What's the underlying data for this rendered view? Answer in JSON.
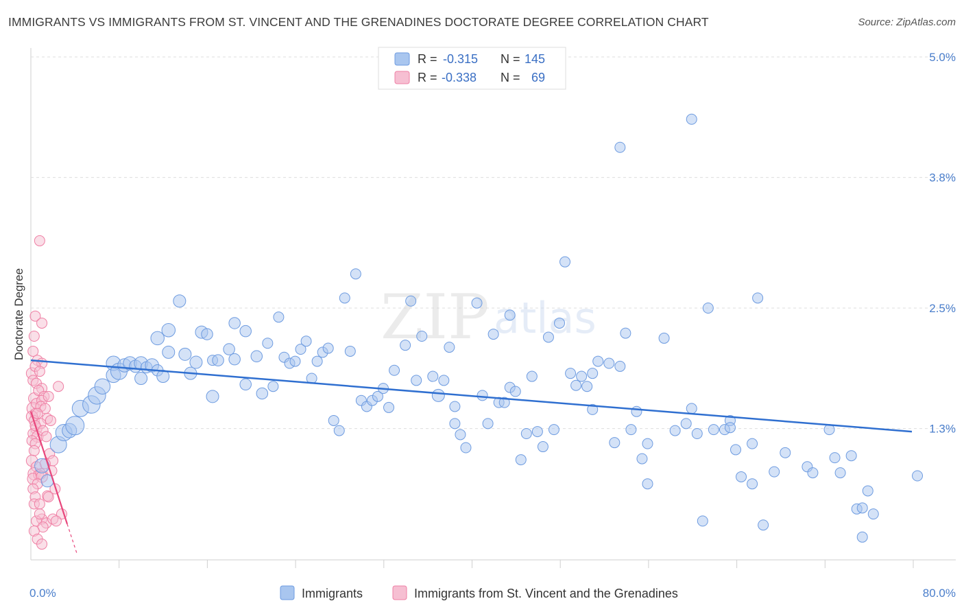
{
  "title": "IMMIGRANTS VS IMMIGRANTS FROM ST. VINCENT AND THE GRENADINES DOCTORATE DEGREE CORRELATION CHART",
  "source": "Source: ZipAtlas.com",
  "watermark": {
    "zip": "ZIP",
    "atlas": "atlas"
  },
  "colors": {
    "blue_fill": "#a9c6ef",
    "blue_stroke": "#6d9be0",
    "blue_line": "#2f6fd0",
    "pink_fill": "#f6bfd2",
    "pink_stroke": "#ef7fa4",
    "pink_line": "#e8467c",
    "tick_text": "#4a7ecb",
    "grid": "#dddddd"
  },
  "legend_top": {
    "rows": [
      {
        "r_label": "R = ",
        "r_value": "-0.315",
        "n_label": "N = ",
        "n_value": "145"
      },
      {
        "r_label": "R = ",
        "r_value": "-0.338",
        "n_label": "N = ",
        "n_value": "69"
      }
    ]
  },
  "chart_data": {
    "type": "scatter",
    "title": "IMMIGRANTS VS IMMIGRANTS FROM ST. VINCENT AND THE GRENADINES DOCTORATE DEGREE CORRELATION CHART",
    "xlabel": "",
    "ylabel": "Doctorate Degree",
    "xlim": [
      0,
      80
    ],
    "ylim": [
      0,
      5.0
    ],
    "x_tick_labels": [
      "0.0%",
      "80.0%"
    ],
    "y_ticks": [
      1.3,
      2.5,
      3.8,
      5.0
    ],
    "y_tick_labels": [
      "1.3%",
      "2.5%",
      "3.8%",
      "5.0%"
    ],
    "grid": true,
    "legend_bottom": [
      "Immigrants",
      "Immigrants from St. Vincent and the Grenadines"
    ],
    "series": [
      {
        "name": "Immigrants",
        "r": -0.315,
        "n": 145,
        "trend": {
          "x0": 0,
          "y0": 1.98,
          "x1": 80,
          "y1": 1.27
        },
        "points": [
          [
            1.0,
            0.93,
            14
          ],
          [
            1.5,
            0.78,
            12
          ],
          [
            2.5,
            1.14,
            16
          ],
          [
            3.0,
            1.26,
            16
          ],
          [
            3.5,
            1.28,
            14
          ],
          [
            4.0,
            1.33,
            18
          ],
          [
            4.5,
            1.5,
            16
          ],
          [
            5.5,
            1.54,
            17
          ],
          [
            6.0,
            1.63,
            17
          ],
          [
            6.5,
            1.72,
            15
          ],
          [
            7.5,
            1.83,
            14
          ],
          [
            7.5,
            1.95,
            14
          ],
          [
            8.0,
            1.87,
            16
          ],
          [
            8.5,
            1.93,
            13
          ],
          [
            9.0,
            1.95,
            13
          ],
          [
            9.5,
            1.92,
            12
          ],
          [
            10.0,
            1.95,
            13
          ],
          [
            10.0,
            1.8,
            12
          ],
          [
            10.5,
            1.91,
            11
          ],
          [
            11.0,
            1.93,
            13
          ],
          [
            11.5,
            1.88,
            11
          ],
          [
            12.0,
            1.82,
            12
          ],
          [
            11.5,
            2.2,
            13
          ],
          [
            12.5,
            2.28,
            13
          ],
          [
            12.5,
            2.06,
            12
          ],
          [
            14.0,
            2.04,
            12
          ],
          [
            13.5,
            2.57,
            12
          ],
          [
            14.5,
            1.85,
            12
          ],
          [
            15.0,
            1.96,
            12
          ],
          [
            15.5,
            2.26,
            12
          ],
          [
            16.0,
            2.24,
            11
          ],
          [
            16.5,
            1.98,
            10
          ],
          [
            17.0,
            1.98,
            11
          ],
          [
            16.5,
            1.62,
            12
          ],
          [
            18.0,
            2.09,
            11
          ],
          [
            18.5,
            1.99,
            11
          ],
          [
            18.5,
            2.35,
            11
          ],
          [
            19.5,
            2.27,
            11
          ],
          [
            19.5,
            1.74,
            11
          ],
          [
            20.5,
            2.02,
            11
          ],
          [
            21.0,
            1.65,
            11
          ],
          [
            21.5,
            2.15,
            10
          ],
          [
            22.0,
            1.72,
            10
          ],
          [
            22.5,
            2.41,
            10
          ],
          [
            23.0,
            2.01,
            10
          ],
          [
            23.5,
            1.95,
            10
          ],
          [
            24.0,
            1.97,
            10
          ],
          [
            24.5,
            2.09,
            10
          ],
          [
            25.0,
            2.17,
            10
          ],
          [
            25.5,
            1.8,
            10
          ],
          [
            26.0,
            1.97,
            10
          ],
          [
            26.5,
            2.06,
            10
          ],
          [
            27.0,
            2.1,
            10
          ],
          [
            27.5,
            1.38,
            10
          ],
          [
            28.0,
            1.28,
            10
          ],
          [
            28.5,
            2.6,
            10
          ],
          [
            29.0,
            2.07,
            10
          ],
          [
            29.5,
            2.84,
            10
          ],
          [
            30.0,
            1.58,
            10
          ],
          [
            30.5,
            1.52,
            10
          ],
          [
            31.0,
            1.58,
            10
          ],
          [
            31.5,
            1.62,
            10
          ],
          [
            32.0,
            1.7,
            10
          ],
          [
            32.5,
            1.51,
            10
          ],
          [
            33.0,
            1.88,
            10
          ],
          [
            34.0,
            2.13,
            10
          ],
          [
            34.5,
            2.57,
            10
          ],
          [
            35.0,
            1.78,
            10
          ],
          [
            35.5,
            2.22,
            10
          ],
          [
            36.5,
            1.82,
            10
          ],
          [
            37.0,
            1.63,
            12
          ],
          [
            37.5,
            1.78,
            10
          ],
          [
            38.0,
            2.11,
            10
          ],
          [
            38.5,
            1.52,
            10
          ],
          [
            38.5,
            1.35,
            10
          ],
          [
            39.0,
            1.24,
            10
          ],
          [
            39.5,
            1.11,
            10
          ],
          [
            40.5,
            2.55,
            10
          ],
          [
            41.0,
            1.63,
            10
          ],
          [
            41.5,
            1.35,
            10
          ],
          [
            42.0,
            2.24,
            10
          ],
          [
            42.5,
            1.56,
            10
          ],
          [
            43.0,
            1.56,
            10
          ],
          [
            43.5,
            1.71,
            10
          ],
          [
            43.5,
            2.43,
            10
          ],
          [
            44.0,
            1.67,
            10
          ],
          [
            44.5,
            0.99,
            10
          ],
          [
            45.0,
            1.25,
            10
          ],
          [
            45.5,
            1.82,
            10
          ],
          [
            46.0,
            1.27,
            10
          ],
          [
            46.5,
            1.12,
            10
          ],
          [
            47.0,
            2.21,
            10
          ],
          [
            47.5,
            1.29,
            10
          ],
          [
            48.0,
            2.35,
            10
          ],
          [
            48.5,
            2.96,
            10
          ],
          [
            49.0,
            1.85,
            10
          ],
          [
            49.5,
            1.73,
            10
          ],
          [
            50.0,
            1.82,
            10
          ],
          [
            50.5,
            1.72,
            10
          ],
          [
            51.0,
            1.49,
            10
          ],
          [
            51.0,
            1.85,
            10
          ],
          [
            51.5,
            1.97,
            10
          ],
          [
            52.5,
            1.95,
            10
          ],
          [
            53.0,
            1.16,
            10
          ],
          [
            53.5,
            1.92,
            10
          ],
          [
            53.5,
            4.1,
            10
          ],
          [
            54.0,
            2.25,
            10
          ],
          [
            54.5,
            1.29,
            10
          ],
          [
            55.0,
            1.47,
            10
          ],
          [
            55.5,
            1.0,
            10
          ],
          [
            56.0,
            1.15,
            10
          ],
          [
            56.0,
            0.75,
            10
          ],
          [
            57.5,
            2.2,
            10
          ],
          [
            58.5,
            1.28,
            10
          ],
          [
            59.5,
            1.35,
            10
          ],
          [
            60.0,
            1.5,
            10
          ],
          [
            60.5,
            1.25,
            10
          ],
          [
            60.0,
            4.38,
            10
          ],
          [
            61.0,
            0.38,
            10
          ],
          [
            61.5,
            2.5,
            10
          ],
          [
            62.0,
            1.29,
            10
          ],
          [
            63.0,
            1.29,
            10
          ],
          [
            63.5,
            1.38,
            10
          ],
          [
            63.5,
            1.31,
            10
          ],
          [
            64.0,
            1.09,
            10
          ],
          [
            64.5,
            0.82,
            10
          ],
          [
            65.5,
            1.15,
            10
          ],
          [
            65.5,
            0.75,
            10
          ],
          [
            66.0,
            2.6,
            10
          ],
          [
            66.5,
            0.34,
            10
          ],
          [
            67.5,
            0.87,
            10
          ],
          [
            68.5,
            1.06,
            10
          ],
          [
            70.5,
            0.92,
            10
          ],
          [
            71.0,
            0.86,
            10
          ],
          [
            72.5,
            1.29,
            10
          ],
          [
            73.0,
            1.01,
            10
          ],
          [
            73.5,
            0.86,
            10
          ],
          [
            74.5,
            1.03,
            10
          ],
          [
            75.0,
            0.5,
            10
          ],
          [
            75.5,
            0.51,
            10
          ],
          [
            75.5,
            0.22,
            10
          ],
          [
            76.0,
            0.68,
            10
          ],
          [
            76.5,
            0.45,
            10
          ],
          [
            80.5,
            0.83,
            10
          ]
        ]
      },
      {
        "name": "Immigrants from St. Vincent and the Grenadines",
        "r": -0.338,
        "n": 69,
        "trend": {
          "x0": 0,
          "y0": 1.47,
          "x1": 3.3,
          "y1": 0.35,
          "dash_to_x": 4.2,
          "dash_to_y": 0.05
        },
        "points": [
          [
            0.1,
            1.85,
            11
          ],
          [
            0.2,
            1.78,
            10
          ],
          [
            0.3,
            1.6,
            11
          ],
          [
            0.2,
            1.5,
            12
          ],
          [
            0.4,
            1.45,
            10
          ],
          [
            0.1,
            1.42,
            11
          ],
          [
            0.3,
            1.38,
            10
          ],
          [
            0.5,
            1.3,
            11
          ],
          [
            0.2,
            1.25,
            10
          ],
          [
            0.6,
            1.22,
            11
          ],
          [
            0.1,
            1.18,
            10
          ],
          [
            0.4,
            1.15,
            10
          ],
          [
            0.3,
            1.08,
            10
          ],
          [
            0.1,
            0.98,
            11
          ],
          [
            0.5,
            0.92,
            10
          ],
          [
            0.3,
            0.85,
            12
          ],
          [
            0.7,
            0.84,
            10
          ],
          [
            0.2,
            0.8,
            11
          ],
          [
            0.9,
            0.85,
            10
          ],
          [
            1.0,
            0.82,
            11
          ],
          [
            0.6,
            0.75,
            10
          ],
          [
            0.2,
            0.7,
            10
          ],
          [
            0.4,
            0.62,
            10
          ],
          [
            0.3,
            0.55,
            10
          ],
          [
            0.8,
            0.55,
            10
          ],
          [
            1.0,
            0.4,
            10
          ],
          [
            0.5,
            0.38,
            10
          ],
          [
            1.4,
            0.36,
            10
          ],
          [
            1.1,
            0.32,
            10
          ],
          [
            0.3,
            0.28,
            10
          ],
          [
            0.6,
            0.2,
            10
          ],
          [
            1.0,
            0.15,
            10
          ],
          [
            0.8,
            3.17,
            10
          ],
          [
            0.4,
            2.42,
            10
          ],
          [
            0.3,
            2.22,
            10
          ],
          [
            1.0,
            2.35,
            10
          ],
          [
            0.2,
            2.07,
            10
          ],
          [
            0.6,
            1.98,
            10
          ],
          [
            1.0,
            1.95,
            10
          ],
          [
            0.4,
            1.92,
            10
          ],
          [
            0.8,
            1.87,
            10
          ],
          [
            0.5,
            1.75,
            10
          ],
          [
            1.0,
            1.7,
            10
          ],
          [
            0.7,
            1.68,
            10
          ],
          [
            1.2,
            1.62,
            10
          ],
          [
            0.5,
            1.55,
            10
          ],
          [
            1.0,
            1.58,
            10
          ],
          [
            1.6,
            1.62,
            10
          ],
          [
            0.9,
            1.52,
            10
          ],
          [
            1.3,
            1.5,
            10
          ],
          [
            0.6,
            1.45,
            10
          ],
          [
            1.5,
            1.4,
            10
          ],
          [
            0.9,
            1.35,
            10
          ],
          [
            0.4,
            1.33,
            10
          ],
          [
            1.8,
            1.38,
            10
          ],
          [
            1.1,
            1.28,
            10
          ],
          [
            1.4,
            1.22,
            10
          ],
          [
            2.5,
            1.72,
            10
          ],
          [
            1.7,
            1.05,
            10
          ],
          [
            2.0,
            0.98,
            10
          ],
          [
            1.3,
            0.95,
            10
          ],
          [
            1.9,
            0.88,
            10
          ],
          [
            2.2,
            0.7,
            10
          ],
          [
            1.5,
            0.63,
            10
          ],
          [
            2.8,
            0.45,
            10
          ],
          [
            2.0,
            0.4,
            10
          ],
          [
            1.6,
            0.62,
            10
          ],
          [
            0.8,
            0.45,
            10
          ],
          [
            2.3,
            0.38,
            10
          ]
        ]
      }
    ]
  },
  "x_axis": {
    "left_label": "0.0%",
    "right_label": "80.0%"
  }
}
